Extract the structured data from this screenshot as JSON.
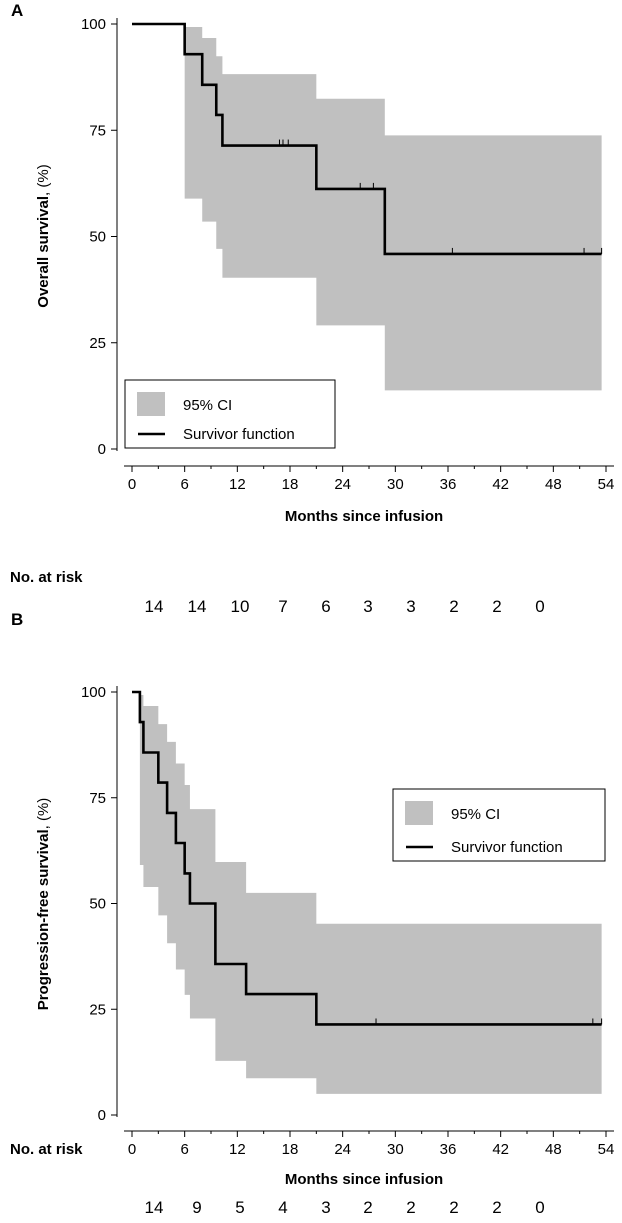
{
  "chart_data": [
    {
      "panel": "A",
      "type": "line",
      "xlabel": "Months since infusion",
      "ylabel_bold": "Overall survival",
      "ylabel_rest": ", (%)",
      "xticks": [
        0,
        6,
        12,
        18,
        24,
        30,
        36,
        42,
        48,
        54
      ],
      "yticks": [
        0,
        25,
        50,
        75,
        100
      ],
      "xlim": [
        0,
        54
      ],
      "ylim": [
        0,
        100
      ],
      "legend": {
        "position": "bottom-left",
        "ci_label": "95% CI",
        "line_label": "Survivor function"
      },
      "survival": [
        [
          0,
          100
        ],
        [
          6,
          92.9
        ],
        [
          8,
          85.7
        ],
        [
          9.6,
          78.6
        ],
        [
          10.3,
          71.4
        ],
        [
          21,
          61.2
        ],
        [
          28.8,
          45.9
        ],
        [
          53.5,
          45.9
        ]
      ],
      "ci_upper": [
        [
          0,
          100
        ],
        [
          6,
          99.3
        ],
        [
          8,
          96.7
        ],
        [
          9.6,
          92.4
        ],
        [
          10.3,
          88.2
        ],
        [
          21,
          82.4
        ],
        [
          28.8,
          73.8
        ],
        [
          53.5,
          73.8
        ]
      ],
      "ci_lower": [
        [
          0,
          100
        ],
        [
          6,
          58.9
        ],
        [
          8,
          53.5
        ],
        [
          9.6,
          47.1
        ],
        [
          10.3,
          40.3
        ],
        [
          21,
          29.1
        ],
        [
          28.8,
          13.8
        ],
        [
          53.5,
          13.8
        ]
      ],
      "censored": [
        [
          16.8,
          71.4
        ],
        [
          17.2,
          71.4
        ],
        [
          17.8,
          71.4
        ],
        [
          26,
          61.2
        ],
        [
          27.5,
          61.2
        ],
        [
          36.5,
          45.9
        ],
        [
          51.5,
          45.9
        ],
        [
          53.5,
          45.9
        ]
      ],
      "risk_title": "No. at risk",
      "at_risk": [
        "14",
        "14",
        "10",
        "7",
        "6",
        "3",
        "3",
        "2",
        "2",
        "0"
      ]
    },
    {
      "panel": "B",
      "type": "line",
      "xlabel": "Months since infusion",
      "ylabel_bold": "Progression-free survival",
      "ylabel_rest": ", (%)",
      "xticks": [
        0,
        6,
        12,
        18,
        24,
        30,
        36,
        42,
        48,
        54
      ],
      "yticks": [
        0,
        25,
        50,
        75,
        100
      ],
      "xlim": [
        0,
        54
      ],
      "ylim": [
        0,
        100
      ],
      "legend": {
        "position": "middle-right",
        "ci_label": "95% CI",
        "line_label": "Survivor function"
      },
      "survival": [
        [
          0,
          100
        ],
        [
          0.9,
          92.9
        ],
        [
          1.3,
          85.7
        ],
        [
          3,
          78.6
        ],
        [
          4,
          71.4
        ],
        [
          5,
          64.3
        ],
        [
          6,
          57.1
        ],
        [
          6.6,
          50
        ],
        [
          9.5,
          35.7
        ],
        [
          13,
          28.6
        ],
        [
          21,
          21.4
        ],
        [
          53.5,
          21.4
        ]
      ],
      "ci_upper": [
        [
          0,
          100
        ],
        [
          0.9,
          99.3
        ],
        [
          1.3,
          96.7
        ],
        [
          3,
          92.4
        ],
        [
          4,
          88.2
        ],
        [
          5,
          83.1
        ],
        [
          6,
          78
        ],
        [
          6.6,
          72.3
        ],
        [
          9.5,
          59.8
        ],
        [
          13,
          52.5
        ],
        [
          21,
          45.2
        ],
        [
          53.5,
          45.2
        ]
      ],
      "ci_lower": [
        [
          0,
          100
        ],
        [
          0.9,
          59.1
        ],
        [
          1.3,
          53.9
        ],
        [
          3,
          47.2
        ],
        [
          4,
          40.6
        ],
        [
          5,
          34.4
        ],
        [
          6,
          28.4
        ],
        [
          6.6,
          22.8
        ],
        [
          9.5,
          12.8
        ],
        [
          13,
          8.7
        ],
        [
          21,
          5
        ],
        [
          53.5,
          5
        ]
      ],
      "censored": [
        [
          27.8,
          21.4
        ],
        [
          52.5,
          21.4
        ],
        [
          53.5,
          21.4
        ]
      ],
      "risk_title": "No. at risk",
      "at_risk": [
        "14",
        "9",
        "5",
        "4",
        "3",
        "2",
        "2",
        "2",
        "2",
        "0"
      ]
    }
  ],
  "colors": {
    "ci_fill": "#c0c0c0",
    "line": "#000000",
    "axis": "#000000"
  }
}
